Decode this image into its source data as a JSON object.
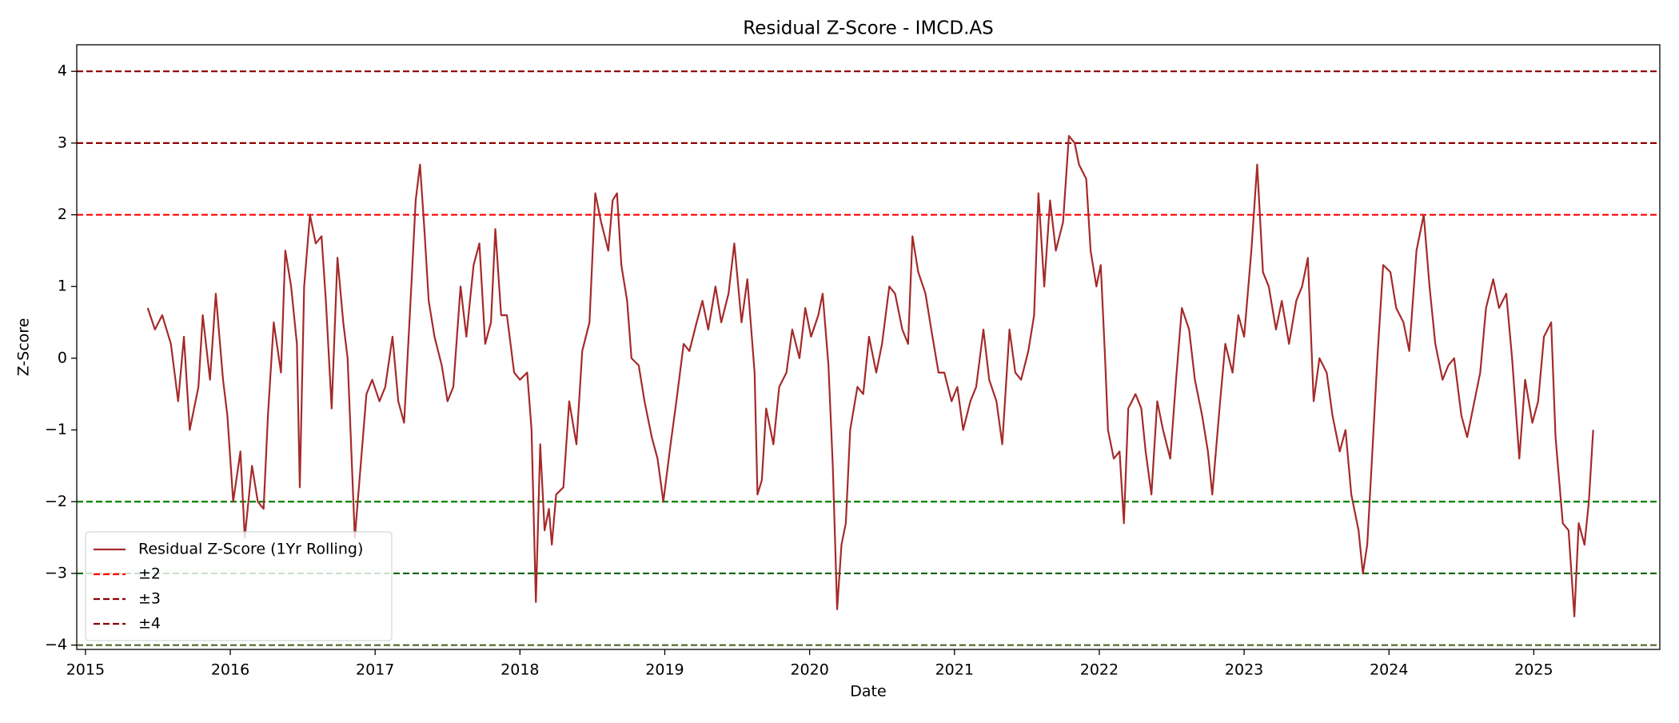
{
  "chart_data": {
    "type": "line",
    "title": "Residual Z-Score - IMCD.AS",
    "x_label": "Date",
    "y_label": "Z-Score",
    "x": [
      2015.43,
      2015.48,
      2015.53,
      2015.59,
      2015.64,
      2015.68,
      2015.72,
      2015.78,
      2015.81,
      2015.86,
      2015.9,
      2015.95,
      2015.98,
      2016.02,
      2016.07,
      2016.1,
      2016.15,
      2016.19,
      2016.23,
      2016.26,
      2016.3,
      2016.35,
      2016.38,
      2016.42,
      2016.46,
      2016.48,
      2016.51,
      2016.55,
      2016.59,
      2016.63,
      2016.66,
      2016.7,
      2016.74,
      2016.78,
      2016.81,
      2016.86,
      2016.9,
      2016.94,
      2016.98,
      2017.03,
      2017.07,
      2017.12,
      2017.16,
      2017.2,
      2017.25,
      2017.28,
      2017.31,
      2017.34,
      2017.37,
      2017.41,
      2017.46,
      2017.5,
      2017.54,
      2017.59,
      2017.63,
      2017.68,
      2017.72,
      2017.76,
      2017.8,
      2017.83,
      2017.87,
      2017.91,
      2017.96,
      2018.0,
      2018.05,
      2018.08,
      2018.11,
      2018.14,
      2018.17,
      2018.2,
      2018.22,
      2018.25,
      2018.3,
      2018.34,
      2018.39,
      2018.43,
      2018.48,
      2018.52,
      2018.56,
      2018.61,
      2018.64,
      2018.67,
      2018.7,
      2018.74,
      2018.77,
      2018.82,
      2018.86,
      2018.91,
      2018.95,
      2018.99,
      2019.04,
      2019.08,
      2019.13,
      2019.17,
      2019.22,
      2019.26,
      2019.3,
      2019.35,
      2019.39,
      2019.44,
      2019.48,
      2019.53,
      2019.57,
      2019.62,
      2019.64,
      2019.67,
      2019.7,
      2019.75,
      2019.79,
      2019.84,
      2019.88,
      2019.93,
      2019.97,
      2020.01,
      2020.06,
      2020.09,
      2020.13,
      2020.16,
      2020.19,
      2020.22,
      2020.25,
      2020.28,
      2020.33,
      2020.37,
      2020.41,
      2020.46,
      2020.5,
      2020.55,
      2020.59,
      2020.64,
      2020.68,
      2020.71,
      2020.75,
      2020.8,
      2020.84,
      2020.89,
      2020.93,
      2020.98,
      2021.02,
      2021.06,
      2021.11,
      2021.15,
      2021.2,
      2021.24,
      2021.29,
      2021.33,
      2021.38,
      2021.42,
      2021.46,
      2021.51,
      2021.55,
      2021.58,
      2021.62,
      2021.66,
      2021.7,
      2021.75,
      2021.79,
      2021.83,
      2021.86,
      2021.91,
      2021.94,
      2021.98,
      2022.01,
      2022.04,
      2022.06,
      2022.1,
      2022.14,
      2022.17,
      2022.2,
      2022.25,
      2022.29,
      2022.32,
      2022.36,
      2022.4,
      2022.44,
      2022.49,
      2022.53,
      2022.57,
      2022.62,
      2022.66,
      2022.71,
      2022.75,
      2022.78,
      2022.83,
      2022.87,
      2022.92,
      2022.96,
      2023.0,
      2023.05,
      2023.09,
      2023.13,
      2023.17,
      2023.22,
      2023.26,
      2023.31,
      2023.36,
      2023.4,
      2023.44,
      2023.48,
      2023.52,
      2023.57,
      2023.61,
      2023.66,
      2023.7,
      2023.74,
      2023.79,
      2023.82,
      2023.85,
      2023.88,
      2023.92,
      2023.96,
      2024.01,
      2024.05,
      2024.1,
      2024.14,
      2024.19,
      2024.24,
      2024.28,
      2024.32,
      2024.37,
      2024.41,
      2024.45,
      2024.5,
      2024.54,
      2024.59,
      2024.63,
      2024.67,
      2024.72,
      2024.76,
      2024.81,
      2024.85,
      2024.9,
      2024.94,
      2024.99,
      2025.03,
      2025.07,
      2025.12,
      2025.15,
      2025.2,
      2025.24,
      2025.28,
      2025.31,
      2025.35,
      2025.38,
      2025.41
    ],
    "series": [
      {
        "name": "Residual Z-Score (1Yr Rolling)",
        "color": "#a52a2a",
        "values": [
          0.7,
          0.4,
          0.6,
          0.2,
          -0.6,
          0.3,
          -1.0,
          -0.4,
          0.6,
          -0.3,
          0.9,
          -0.3,
          -0.8,
          -2.0,
          -1.3,
          -2.5,
          -1.5,
          -2.0,
          -2.1,
          -0.8,
          0.5,
          -0.2,
          1.5,
          1.0,
          0.2,
          -1.8,
          1.0,
          2.0,
          1.6,
          1.7,
          0.8,
          -0.7,
          1.4,
          0.5,
          0.0,
          -2.5,
          -1.5,
          -0.5,
          -0.3,
          -0.6,
          -0.4,
          0.3,
          -0.6,
          -0.9,
          1.0,
          2.2,
          2.7,
          1.8,
          0.8,
          0.3,
          -0.1,
          -0.6,
          -0.4,
          1.0,
          0.3,
          1.3,
          1.6,
          0.2,
          0.5,
          1.8,
          0.6,
          0.6,
          -0.2,
          -0.3,
          -0.2,
          -1.0,
          -3.4,
          -1.2,
          -2.4,
          -2.1,
          -2.6,
          -1.9,
          -1.8,
          -0.6,
          -1.2,
          0.1,
          0.5,
          2.3,
          1.9,
          1.5,
          2.2,
          2.3,
          1.3,
          0.8,
          0.0,
          -0.1,
          -0.6,
          -1.1,
          -1.4,
          -2.0,
          -1.2,
          -0.6,
          0.2,
          0.1,
          0.5,
          0.8,
          0.4,
          1.0,
          0.5,
          0.9,
          1.6,
          0.5,
          1.1,
          -0.2,
          -1.9,
          -1.7,
          -0.7,
          -1.2,
          -0.4,
          -0.2,
          0.4,
          0.0,
          0.7,
          0.3,
          0.6,
          0.9,
          -0.1,
          -1.5,
          -3.5,
          -2.6,
          -2.3,
          -1.0,
          -0.4,
          -0.5,
          0.3,
          -0.2,
          0.2,
          1.0,
          0.9,
          0.4,
          0.2,
          1.7,
          1.2,
          0.9,
          0.4,
          -0.2,
          -0.2,
          -0.6,
          -0.4,
          -1.0,
          -0.6,
          -0.4,
          0.4,
          -0.3,
          -0.6,
          -1.2,
          0.4,
          -0.2,
          -0.3,
          0.1,
          0.6,
          2.3,
          1.0,
          2.2,
          1.5,
          1.9,
          3.1,
          3.0,
          2.7,
          2.5,
          1.5,
          1.0,
          1.3,
          0.0,
          -1.0,
          -1.4,
          -1.3,
          -2.3,
          -0.7,
          -0.5,
          -0.7,
          -1.3,
          -1.9,
          -0.6,
          -1.0,
          -1.4,
          -0.3,
          0.7,
          0.4,
          -0.3,
          -0.8,
          -1.3,
          -1.9,
          -0.7,
          0.2,
          -0.2,
          0.6,
          0.3,
          1.5,
          2.7,
          1.2,
          1.0,
          0.4,
          0.8,
          0.2,
          0.8,
          1.0,
          1.4,
          -0.6,
          0.0,
          -0.2,
          -0.8,
          -1.3,
          -1.0,
          -1.9,
          -2.4,
          -3.0,
          -2.6,
          -1.5,
          0.0,
          1.3,
          1.2,
          0.7,
          0.5,
          0.1,
          1.5,
          2.0,
          1.0,
          0.2,
          -0.3,
          -0.1,
          0.0,
          -0.8,
          -1.1,
          -0.6,
          -0.2,
          0.7,
          1.1,
          0.7,
          0.9,
          0.0,
          -1.4,
          -0.3,
          -0.9,
          -0.6,
          0.3,
          0.5,
          -1.1,
          -2.3,
          -2.4,
          -3.6,
          -2.3,
          -2.6,
          -2.0,
          -1.0
        ]
      }
    ],
    "reference_lines": [
      {
        "name": "±2",
        "values": [
          2,
          -2
        ],
        "colors": [
          "#ff0000",
          "#008000"
        ]
      },
      {
        "name": "±3",
        "values": [
          3,
          -3
        ],
        "colors": [
          "#8b0000",
          "#006400"
        ]
      },
      {
        "name": "±4",
        "values": [
          4,
          -4
        ],
        "colors": [
          "#8b0000",
          "#556b2f"
        ]
      }
    ],
    "xlim": [
      2014.94,
      2025.87
    ],
    "xticks": [
      2015,
      2016,
      2017,
      2018,
      2019,
      2020,
      2021,
      2022,
      2023,
      2024,
      2025
    ],
    "ylim": [
      -4.06,
      4.37
    ],
    "yticks": [
      {
        "value": -4,
        "label": "−4"
      },
      {
        "value": -3,
        "label": "−3"
      },
      {
        "value": -2,
        "label": "−2"
      },
      {
        "value": -1,
        "label": "−1"
      },
      0,
      1,
      2,
      3,
      4
    ],
    "legend": "lower left"
  }
}
